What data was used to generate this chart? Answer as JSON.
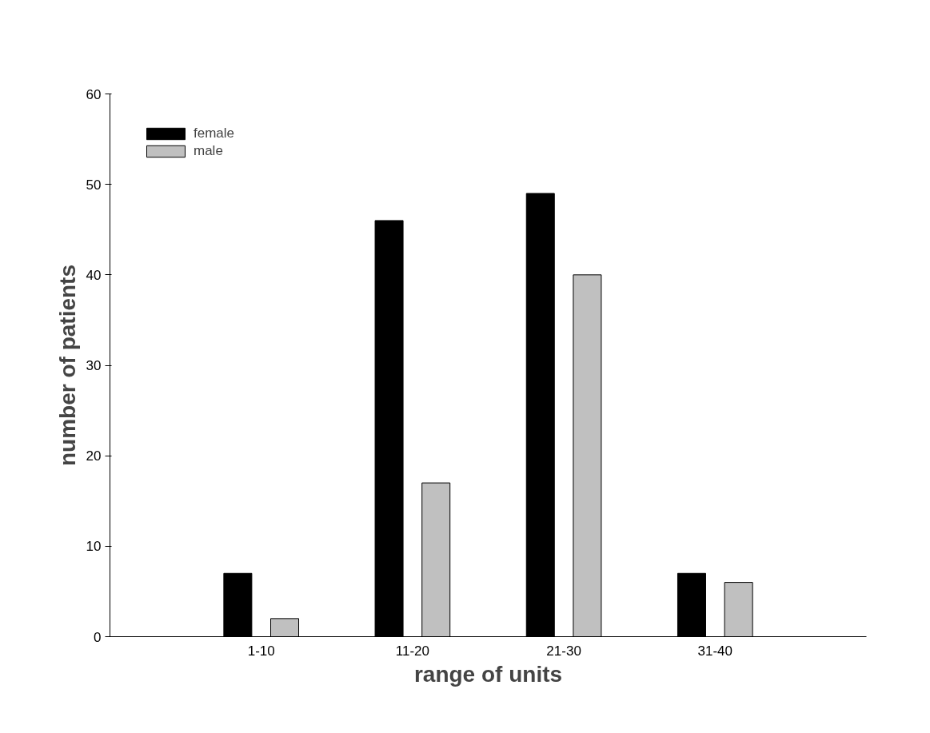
{
  "chart_data": {
    "type": "bar",
    "xlabel": "range of units",
    "ylabel": "number of patients",
    "categories": [
      "1-10",
      "11-20",
      "21-30",
      "31-40"
    ],
    "series": [
      {
        "name": "female",
        "color": "#000000",
        "values": [
          7,
          46,
          49,
          7
        ]
      },
      {
        "name": "male",
        "color": "#c0c0c0",
        "values": [
          2,
          17,
          40,
          6
        ]
      }
    ],
    "ylim": [
      0,
      60
    ],
    "yticks": [
      0,
      10,
      20,
      30,
      40,
      50,
      60
    ],
    "grid": false,
    "legend": "top left"
  }
}
